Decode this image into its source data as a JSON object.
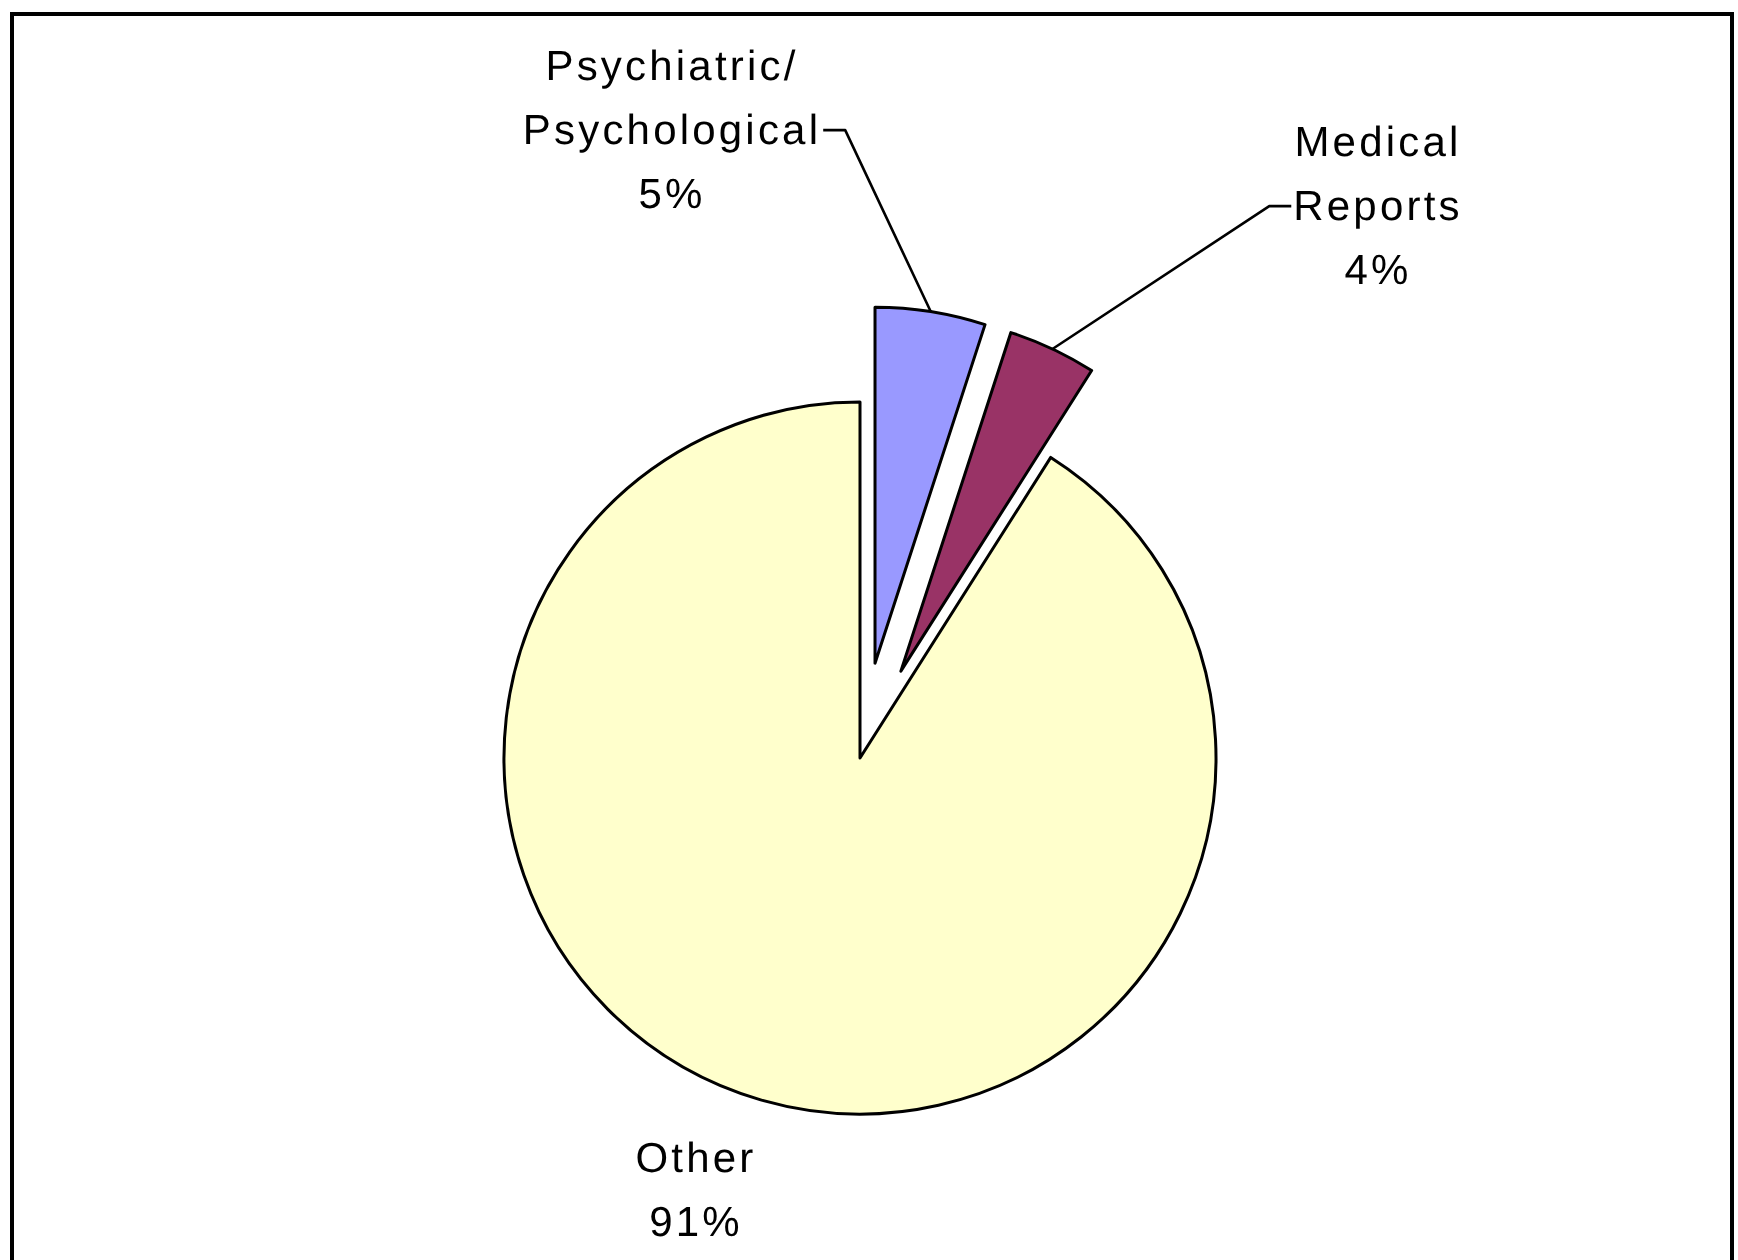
{
  "chart_data": {
    "type": "pie",
    "categories": [
      "Psychiatric/Psychological",
      "Medical Reports",
      "Other"
    ],
    "values": [
      5,
      4,
      91
    ],
    "colors": [
      "#9999ff",
      "#993366",
      "#ffffcc"
    ],
    "value_labels": [
      "5%",
      "4%",
      "91%"
    ]
  }
}
